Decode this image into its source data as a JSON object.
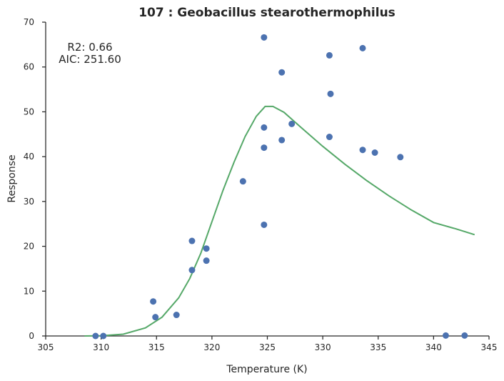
{
  "chart_data": {
    "type": "scatter",
    "title": "107 : Geobacillus stearothermophilus",
    "xlabel": "Temperature (K)",
    "ylabel": "Response",
    "xlim": [
      305,
      345
    ],
    "ylim": [
      0,
      70
    ],
    "xticks": [
      305,
      310,
      315,
      320,
      325,
      330,
      335,
      340,
      345
    ],
    "yticks": [
      0,
      10,
      20,
      30,
      40,
      50,
      60,
      70
    ],
    "grid": false,
    "annotations": [
      "R2: 0.66",
      "AIC: 251.60"
    ],
    "colors": {
      "points": "#4c72b0",
      "fit": "#55a868",
      "axis": "#262626"
    },
    "series": [
      {
        "type": "scatter",
        "points": [
          [
            309.5,
            0.0
          ],
          [
            310.2,
            0.0
          ],
          [
            314.7,
            7.7
          ],
          [
            314.9,
            4.2
          ],
          [
            316.8,
            4.7
          ],
          [
            318.2,
            21.2
          ],
          [
            318.2,
            14.7
          ],
          [
            319.5,
            19.5
          ],
          [
            319.5,
            16.8
          ],
          [
            322.8,
            34.5
          ],
          [
            324.7,
            66.6
          ],
          [
            324.7,
            46.5
          ],
          [
            324.7,
            42.0
          ],
          [
            324.7,
            24.8
          ],
          [
            326.3,
            58.8
          ],
          [
            326.3,
            43.7
          ],
          [
            327.2,
            47.3
          ],
          [
            330.6,
            62.6
          ],
          [
            330.7,
            54.0
          ],
          [
            330.6,
            44.4
          ],
          [
            333.6,
            64.2
          ],
          [
            333.6,
            41.5
          ],
          [
            334.7,
            40.9
          ],
          [
            337.0,
            39.9
          ],
          [
            341.1,
            0.1
          ],
          [
            342.8,
            0.1
          ]
        ]
      },
      {
        "type": "line",
        "points": [
          [
            308.5,
            0.0
          ],
          [
            310.0,
            0.05
          ],
          [
            312.0,
            0.4
          ],
          [
            314.0,
            1.8
          ],
          [
            315.5,
            4.2
          ],
          [
            317.0,
            8.5
          ],
          [
            318.0,
            12.8
          ],
          [
            319.0,
            18.5
          ],
          [
            320.0,
            25.5
          ],
          [
            321.0,
            32.5
          ],
          [
            322.0,
            38.8
          ],
          [
            323.0,
            44.5
          ],
          [
            324.0,
            49.0
          ],
          [
            324.8,
            51.2
          ],
          [
            325.5,
            51.2
          ],
          [
            326.5,
            49.9
          ],
          [
            328.0,
            46.6
          ],
          [
            330.0,
            42.3
          ],
          [
            332.0,
            38.3
          ],
          [
            334.0,
            34.6
          ],
          [
            336.0,
            31.2
          ],
          [
            338.0,
            28.1
          ],
          [
            340.0,
            25.3
          ],
          [
            342.0,
            23.9
          ],
          [
            343.7,
            22.6
          ]
        ]
      }
    ]
  }
}
